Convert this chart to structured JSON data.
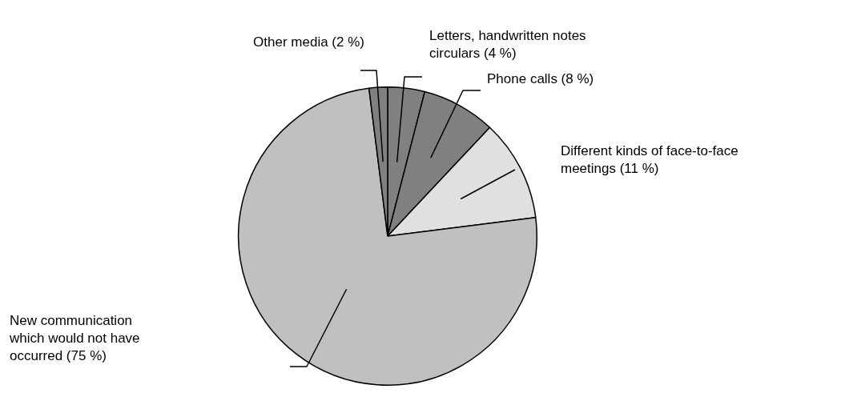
{
  "chart_data": {
    "type": "pie",
    "categories": [
      "Letters, handwritten notes circulars",
      "Phone calls",
      "Different kinds of face-to-face meetings",
      "New communication which would not have occurred",
      "Other media"
    ],
    "values": [
      4,
      8,
      11,
      75,
      2
    ],
    "value_labels": [
      "(4 %)",
      "(8 %)",
      "(11 %)",
      "(75 %)",
      "(2 %)"
    ],
    "colors": [
      "#808080",
      "#808080",
      "#e0e0e0",
      "#c0c0c0",
      "#808080"
    ]
  }
}
